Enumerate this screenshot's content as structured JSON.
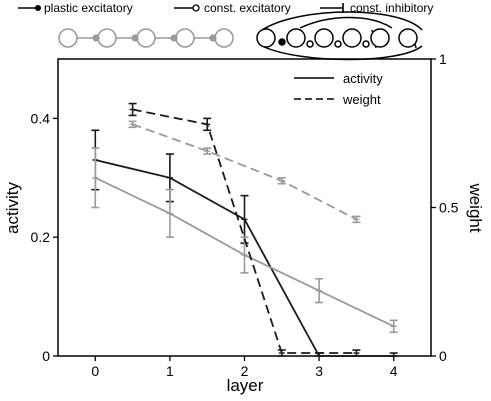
{
  "connection_legend": {
    "plastic_excitatory": "plastic excitatory",
    "const_excitatory": "const. excitatory",
    "const_inhibitory": "const. inhibitory"
  },
  "chart_data": {
    "type": "line",
    "xlabel": "layer",
    "ylabel_left": "activity",
    "ylabel_right": "weight",
    "x_ticks": [
      0,
      1,
      2,
      3,
      4
    ],
    "y_left_ticks": [
      "0",
      "0.2",
      "0.4"
    ],
    "y_right_ticks": [
      "0",
      "0.5",
      "1"
    ],
    "xlim": [
      -0.5,
      4.5
    ],
    "ylim_left": [
      0,
      0.5
    ],
    "ylim_right": [
      0,
      1
    ],
    "legend": {
      "position": "top-right",
      "entries": [
        {
          "label": "activity",
          "style": "solid"
        },
        {
          "label": "weight",
          "style": "dashed"
        }
      ]
    },
    "series": [
      {
        "axis": "left",
        "style": "solid",
        "color": "#1a1a1a",
        "x": [
          0,
          1,
          2,
          3,
          4
        ],
        "y": [
          0.33,
          0.3,
          0.23,
          0.0,
          0.0
        ],
        "err": [
          0.05,
          0.04,
          0.04,
          0.005,
          0.005
        ]
      },
      {
        "axis": "left",
        "style": "solid",
        "color": "#9a9a9a",
        "x": [
          0,
          1,
          2,
          3,
          4
        ],
        "y": [
          0.3,
          0.24,
          0.17,
          0.11,
          0.05
        ],
        "err": [
          0.05,
          0.04,
          0.03,
          0.02,
          0.01
        ]
      },
      {
        "axis": "right",
        "style": "dashed",
        "color": "#1a1a1a",
        "x": [
          0.5,
          1.5,
          2.5,
          3.5
        ],
        "y": [
          0.83,
          0.78,
          0.01,
          0.01
        ],
        "err": [
          0.02,
          0.02,
          0.01,
          0.01
        ]
      },
      {
        "axis": "right",
        "style": "dashed",
        "color": "#9a9a9a",
        "x": [
          0.5,
          1.5,
          2.5,
          3.5
        ],
        "y": [
          0.78,
          0.69,
          0.59,
          0.46
        ],
        "err": [
          0.01,
          0.01,
          0.01,
          0.01
        ]
      }
    ]
  }
}
